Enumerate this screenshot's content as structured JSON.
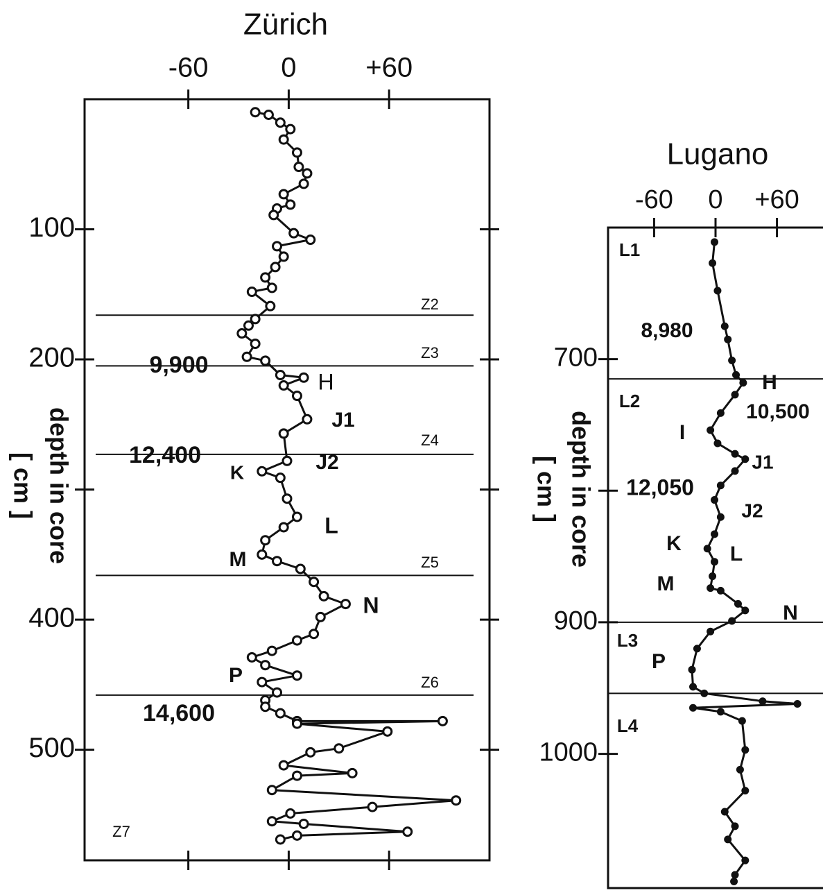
{
  "chart_data": [
    {
      "type": "line",
      "title": "Zürich",
      "y_label": "depth in core",
      "y_unit_label": "[ cm ]",
      "xlim": [
        -122,
        120
      ],
      "xticks": [
        -60,
        0,
        {
          "value": 60,
          "label": "+60"
        }
      ],
      "ylim": [
        0,
        585
      ],
      "y_inverted": true,
      "yticks": [
        100,
        200,
        {
          "value": 300,
          "label": null
        },
        400,
        500
      ],
      "series": [
        {
          "color": "#111",
          "marker": "open-circle",
          "depth": [
            10,
            12,
            18,
            23,
            31,
            41,
            52,
            57,
            65,
            73,
            81,
            84,
            89,
            103,
            108,
            113,
            121,
            129,
            137,
            145,
            148,
            159,
            169,
            174,
            180,
            188,
            198,
            201,
            212,
            214,
            220,
            228,
            246,
            257,
            278,
            286,
            291,
            307,
            321,
            329,
            339,
            350,
            355,
            361,
            371,
            382,
            388,
            398,
            411,
            416,
            424,
            429,
            435,
            443,
            448,
            456,
            462,
            467,
            472,
            478,
            478,
            480,
            486,
            499,
            502,
            512,
            518,
            520,
            531,
            539,
            544,
            549,
            555,
            557,
            563,
            566,
            569
          ],
          "values": [
            -20,
            -12,
            -5,
            1,
            -3,
            5,
            6,
            11,
            9,
            -3,
            1,
            -7,
            -9,
            3,
            13,
            -7,
            -3,
            -8,
            -14,
            -10,
            -22,
            -11,
            -20,
            -24,
            -28,
            -20,
            -25,
            -14,
            -5,
            9,
            -3,
            5,
            11,
            -3,
            -1,
            -16,
            -5,
            -1,
            5,
            -3,
            -14,
            -16,
            -7,
            7,
            15,
            21,
            34,
            19,
            15,
            5,
            -10,
            -22,
            -14,
            5,
            -16,
            -7,
            -14,
            -14,
            -5,
            5,
            92,
            5,
            59,
            30,
            13,
            -3,
            38,
            5,
            -10,
            100,
            50,
            1,
            -10,
            9,
            71,
            5,
            -5
          ]
        }
      ],
      "zone_depths": [
        166,
        205,
        273,
        366,
        458
      ],
      "annotations": [
        "Z2",
        "Z3",
        "Z4",
        "Z5",
        "Z6",
        "Z7",
        "9,900",
        "12,400",
        "14,600",
        "H",
        "J1",
        "J2",
        "K",
        "L",
        "M",
        "N",
        "P"
      ]
    },
    {
      "type": "line",
      "title": "Lugano",
      "y_label": "depth in core",
      "y_unit_label": "[ cm ]",
      "xlim": [
        -105,
        105
      ],
      "xticks": [
        -60,
        0,
        {
          "value": 60,
          "label": "+60"
        }
      ],
      "ylim": [
        600,
        1102
      ],
      "y_inverted": true,
      "yticks": [
        700,
        {
          "value": 800,
          "label": null
        },
        900,
        1000
      ],
      "series": [
        {
          "color": "#111",
          "marker": "filled-circle",
          "depth": [
            611,
            627,
            648,
            675,
            685,
            701,
            712,
            718,
            727,
            741,
            754,
            764,
            772,
            776,
            785,
            796,
            807,
            820,
            833,
            844,
            854,
            865,
            874,
            876,
            886,
            891,
            899,
            907,
            920,
            936,
            949,
            954,
            960,
            962,
            965,
            968,
            975,
            997,
            1012,
            1028,
            1044,
            1055,
            1065,
            1081,
            1092,
            1097
          ],
          "values": [
            -1,
            -3,
            2,
            9,
            12,
            16,
            20,
            27,
            19,
            5,
            -5,
            2,
            19,
            29,
            19,
            5,
            -1,
            5,
            -1,
            -8,
            -1,
            -3,
            -5,
            5,
            22,
            29,
            16,
            -5,
            -18,
            -23,
            -22,
            -11,
            46,
            80,
            -22,
            5,
            26,
            29,
            24,
            29,
            9,
            19,
            12,
            29,
            19,
            18
          ]
        }
      ],
      "zone_depths": [
        715,
        900,
        954
      ],
      "annotations": [
        "L1",
        "L2",
        "L3",
        "L4",
        "8,980",
        "10,500",
        "12,050",
        "H",
        "I",
        "J1",
        "J2",
        "K",
        "L",
        "M",
        "N",
        "P"
      ]
    }
  ]
}
